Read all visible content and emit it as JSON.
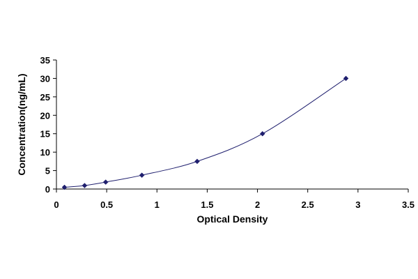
{
  "chart_data": {
    "type": "scatter",
    "title": "",
    "xlabel": "Optical Density",
    "ylabel": "Concentration(ng/mL)",
    "xlim": [
      0,
      3.5
    ],
    "ylim": [
      0,
      35
    ],
    "x_ticks": [
      "0",
      "0.5",
      "1",
      "1.5",
      "2",
      "2.5",
      "3",
      "3.5"
    ],
    "y_ticks": [
      "0",
      "5",
      "10",
      "15",
      "20",
      "25",
      "30",
      "35"
    ],
    "grid": false,
    "legend": "none",
    "series": [
      {
        "x": [
          0.08,
          0.28,
          0.49,
          0.85,
          1.4,
          2.05,
          2.88
        ],
        "y": [
          0.47,
          0.94,
          1.88,
          3.75,
          7.5,
          15,
          30
        ],
        "marker": "diamond",
        "color": "#1f1f6e",
        "trendline": "smooth-curve"
      }
    ]
  }
}
